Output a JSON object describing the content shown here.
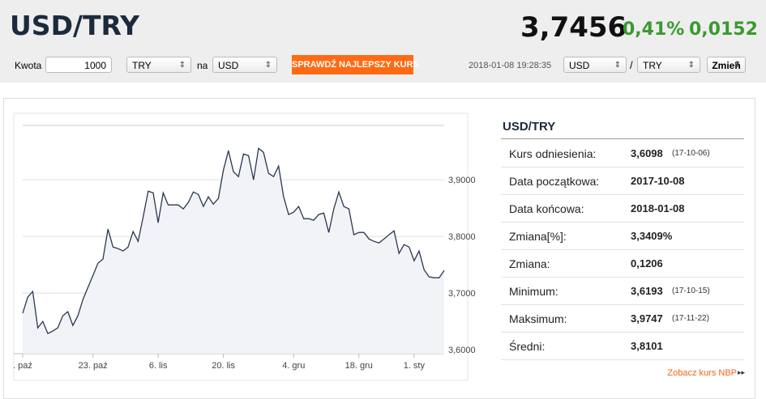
{
  "header": {
    "title": "USD/TRY",
    "price": "3,7456",
    "change_pct": "0,41%",
    "change_abs": "0,0152"
  },
  "converter": {
    "amount_label": "Kwota",
    "amount": "1000",
    "from": "TRY",
    "connector": "na",
    "to": "USD",
    "button": "SPRAWDŹ NAJLEPSZY KURS",
    "timestamp": "2018-01-08 19:28:35",
    "pair_from": "USD",
    "separator": "/",
    "pair_to": "TRY",
    "switch_button": "Zmień"
  },
  "chart_data": {
    "type": "line",
    "color": "#2b3750",
    "fill": "#f1f3f7",
    "grid": true,
    "x": [
      0,
      1,
      2,
      3,
      4,
      5,
      6,
      7,
      8,
      9,
      10,
      11,
      12,
      13,
      14,
      15,
      16,
      17,
      18,
      19,
      20,
      21,
      22,
      23,
      24,
      25,
      26,
      27,
      28,
      29,
      30,
      31,
      32,
      33,
      34,
      35,
      36,
      37,
      38,
      39,
      40,
      41,
      42,
      43,
      44,
      45,
      46,
      47,
      48,
      49,
      50,
      51,
      52,
      53,
      54,
      55,
      56,
      57,
      58,
      59,
      60,
      61,
      62,
      63,
      64,
      65,
      66,
      67,
      68,
      69,
      70,
      71,
      72,
      73,
      74,
      75,
      76,
      77,
      78,
      79,
      80,
      81,
      82,
      83,
      84
    ],
    "values": [
      3.6643,
      3.6929,
      3.7029,
      3.6386,
      3.65,
      3.6286,
      3.6329,
      3.6386,
      3.66,
      3.6671,
      3.6429,
      3.66,
      3.6886,
      3.71,
      3.7314,
      3.7529,
      3.76,
      3.8129,
      3.7814,
      3.7786,
      3.7743,
      3.7814,
      3.8086,
      3.7914,
      3.8343,
      3.88,
      3.8771,
      3.8243,
      3.8771,
      3.8557,
      3.8557,
      3.8557,
      3.8486,
      3.86,
      3.8786,
      3.8743,
      3.8529,
      3.87,
      3.8571,
      3.8671,
      3.9171,
      3.9514,
      3.9143,
      3.9057,
      3.9457,
      3.9429,
      3.9,
      3.9557,
      3.9486,
      3.9114,
      3.9057,
      3.9243,
      3.87,
      3.8386,
      3.8429,
      3.8529,
      3.8314,
      3.8314,
      3.8286,
      3.8386,
      3.8414,
      3.8071,
      3.8486,
      3.8786,
      3.8529,
      3.8486,
      3.8029,
      3.8071,
      3.8071,
      3.7957,
      3.7914,
      3.7886,
      3.7957,
      3.8029,
      3.81,
      3.77,
      3.7857,
      3.7814,
      3.7571,
      3.7743,
      3.7414,
      3.7286,
      3.7271,
      3.7271,
      3.74
    ],
    "xlim": [
      0,
      84
    ],
    "xticks": [
      {
        "value": 0,
        "label": ". paź"
      },
      {
        "value": 14,
        "label": "23. paź"
      },
      {
        "value": 27,
        "label": "6. lis"
      },
      {
        "value": 40,
        "label": "20. lis"
      },
      {
        "value": 54,
        "label": "4. gru"
      },
      {
        "value": 67,
        "label": "18. gru"
      },
      {
        "value": 78,
        "label": "1. sty"
      }
    ],
    "ylim": [
      3.593,
      3.996
    ],
    "yticks": [
      {
        "value": 3.6,
        "label": "3,6000"
      },
      {
        "value": 3.7,
        "label": "3,7000"
      },
      {
        "value": 3.8,
        "label": "3,8000"
      },
      {
        "value": 3.9,
        "label": "3,9000"
      }
    ]
  },
  "stats": {
    "title": "USD/TRY",
    "rows": [
      {
        "label": "Kurs odniesienia:",
        "value": "3,6098",
        "date": "(17-10-06)"
      },
      {
        "label": "Data początkowa:",
        "value": "2017-10-08"
      },
      {
        "label": "Data końcowa:",
        "value": "2018-01-08"
      },
      {
        "label": "Zmiana[%]:",
        "value": "3,3409%"
      },
      {
        "label": "Zmiana:",
        "value": "0,1206"
      },
      {
        "label": "Minimum:",
        "value": "3,6193",
        "date": "(17-10-15)"
      },
      {
        "label": "Maksimum:",
        "value": "3,9747",
        "date": "(17-11-22)"
      },
      {
        "label": "Średni:",
        "value": "3,8101"
      }
    ],
    "link": "Zobacz kurs NBP"
  }
}
